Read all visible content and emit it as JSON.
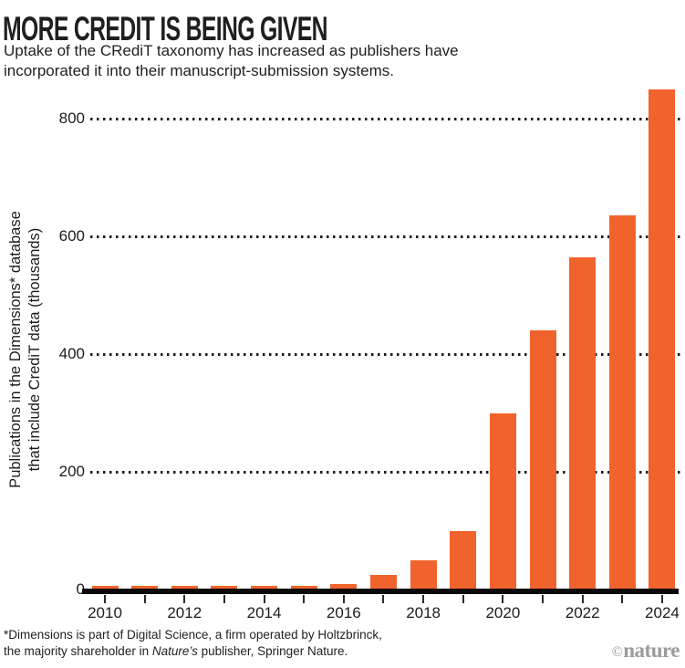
{
  "header": {
    "title": "MORE CREDIT IS BEING GIVEN",
    "subtitle_line1": "Uptake of the CRediT taxonomy has increased as publishers have",
    "subtitle_line2": "incorporated it into their manuscript-submission systems."
  },
  "chart_data": {
    "type": "bar",
    "title": "MORE CREDIT IS BEING GIVEN",
    "ylabel_line1": "Publications in the Dimensions* database",
    "ylabel_line2": "that include CrediT data (thousands)",
    "categories": [
      "2010",
      "2011",
      "2012",
      "2013",
      "2014",
      "2015",
      "2016",
      "2017",
      "2018",
      "2019",
      "2020",
      "2021",
      "2022",
      "2023",
      "2024"
    ],
    "values": [
      6,
      6,
      6,
      6,
      6,
      6,
      10,
      25,
      50,
      100,
      300,
      440,
      565,
      635,
      850
    ],
    "yticks": [
      0,
      200,
      400,
      600,
      800
    ],
    "xtick_labels": [
      "2010",
      "2012",
      "2014",
      "2016",
      "2018",
      "2020",
      "2022",
      "2024"
    ],
    "ylim": [
      0,
      870
    ],
    "bar_color": "#F1632D",
    "grid": "horizontal-dotted",
    "legend": "none"
  },
  "footnote": {
    "line1": "*Dimensions is part of Digital Science, a firm operated by Holtzbrinck,",
    "line2_pre": "the majority shareholder in ",
    "line2_italic": "Nature’s",
    "line2_post": " publisher, Springer Nature."
  },
  "credit": {
    "symbol": "©",
    "name": "nature"
  }
}
